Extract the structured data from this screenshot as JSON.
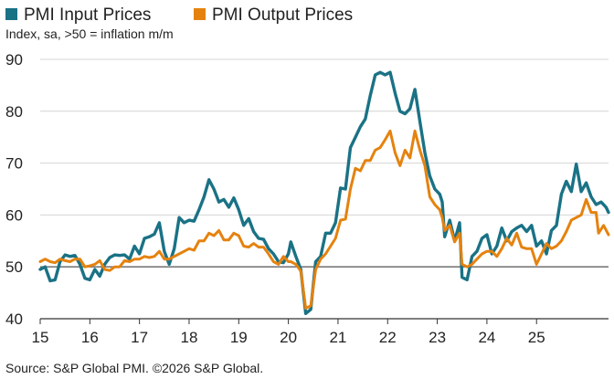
{
  "chart_data": {
    "type": "line",
    "title": "",
    "subtitle": "Index, sa, >50 = inflation m/m",
    "source": "Source: S&P Global PMI. ©2026 S&P Global.",
    "xlabel": "",
    "ylabel": "",
    "ylim": [
      40,
      90
    ],
    "xlim": [
      2015.0,
      2025.95
    ],
    "yticks": [
      "40",
      "50",
      "60",
      "70",
      "80",
      "90"
    ],
    "xticks": [
      "15",
      "16",
      "17",
      "18",
      "19",
      "20",
      "21",
      "22",
      "23",
      "24",
      "25"
    ],
    "grid": "horizontal",
    "legend": "top-left",
    "series": [
      {
        "name": "PMI Input Prices",
        "color": "#1a7285",
        "points": [
          [
            2015.0,
            49.5
          ],
          [
            2015.1,
            50.0
          ],
          [
            2015.2,
            47.3
          ],
          [
            2015.3,
            47.5
          ],
          [
            2015.4,
            51.0
          ],
          [
            2015.5,
            52.3
          ],
          [
            2015.6,
            52.0
          ],
          [
            2015.7,
            52.2
          ],
          [
            2015.8,
            50.5
          ],
          [
            2015.9,
            47.8
          ],
          [
            2016.0,
            47.5
          ],
          [
            2016.1,
            49.5
          ],
          [
            2016.2,
            48.2
          ],
          [
            2016.3,
            50.5
          ],
          [
            2016.4,
            51.8
          ],
          [
            2016.5,
            52.3
          ],
          [
            2016.6,
            52.2
          ],
          [
            2016.7,
            52.3
          ],
          [
            2016.8,
            51.5
          ],
          [
            2016.9,
            54.0
          ],
          [
            2017.0,
            52.5
          ],
          [
            2017.1,
            55.5
          ],
          [
            2017.2,
            55.8
          ],
          [
            2017.3,
            56.3
          ],
          [
            2017.4,
            58.5
          ],
          [
            2017.5,
            53.0
          ],
          [
            2017.6,
            50.5
          ],
          [
            2017.7,
            53.5
          ],
          [
            2017.8,
            59.5
          ],
          [
            2017.9,
            58.5
          ],
          [
            2018.0,
            59.0
          ],
          [
            2018.1,
            58.8
          ],
          [
            2018.2,
            61.0
          ],
          [
            2018.3,
            63.5
          ],
          [
            2018.4,
            66.8
          ],
          [
            2018.5,
            65.0
          ],
          [
            2018.6,
            62.5
          ],
          [
            2018.7,
            63.0
          ],
          [
            2018.8,
            61.5
          ],
          [
            2018.9,
            63.3
          ],
          [
            2019.0,
            61.0
          ],
          [
            2019.1,
            58.0
          ],
          [
            2019.2,
            59.3
          ],
          [
            2019.3,
            56.8
          ],
          [
            2019.4,
            55.5
          ],
          [
            2019.5,
            55.3
          ],
          [
            2019.6,
            53.5
          ],
          [
            2019.7,
            52.5
          ],
          [
            2019.8,
            51.0
          ],
          [
            2019.9,
            50.8
          ],
          [
            2020.0,
            52.5
          ],
          [
            2020.05,
            54.8
          ],
          [
            2020.15,
            52.0
          ],
          [
            2020.25,
            49.5
          ],
          [
            2020.35,
            41.0
          ],
          [
            2020.45,
            41.8
          ],
          [
            2020.55,
            51.0
          ],
          [
            2020.65,
            52.0
          ],
          [
            2020.75,
            56.5
          ],
          [
            2020.85,
            56.5
          ],
          [
            2020.95,
            58.5
          ],
          [
            2021.05,
            65.2
          ],
          [
            2021.15,
            65.0
          ],
          [
            2021.25,
            73.0
          ],
          [
            2021.35,
            75.0
          ],
          [
            2021.45,
            77.0
          ],
          [
            2021.55,
            78.5
          ],
          [
            2021.65,
            83.0
          ],
          [
            2021.75,
            87.0
          ],
          [
            2021.85,
            87.5
          ],
          [
            2021.95,
            87.0
          ],
          [
            2022.05,
            87.5
          ],
          [
            2022.15,
            83.5
          ],
          [
            2022.25,
            80.0
          ],
          [
            2022.35,
            79.5
          ],
          [
            2022.45,
            80.5
          ],
          [
            2022.55,
            84.2
          ],
          [
            2022.65,
            78.0
          ],
          [
            2022.75,
            72.0
          ],
          [
            2022.85,
            67.5
          ],
          [
            2022.95,
            65.0
          ],
          [
            2023.05,
            64.0
          ],
          [
            2023.1,
            62.5
          ],
          [
            2023.15,
            55.8
          ],
          [
            2023.25,
            59.0
          ],
          [
            2023.35,
            55.0
          ],
          [
            2023.45,
            58.5
          ],
          [
            2023.5,
            48.0
          ],
          [
            2023.6,
            47.5
          ],
          [
            2023.7,
            52.0
          ],
          [
            2023.8,
            53.0
          ],
          [
            2023.9,
            55.5
          ],
          [
            2024.0,
            56.2
          ],
          [
            2024.1,
            52.5
          ],
          [
            2024.2,
            54.0
          ],
          [
            2024.3,
            57.5
          ],
          [
            2024.4,
            55.0
          ],
          [
            2024.5,
            56.8
          ],
          [
            2024.6,
            57.5
          ],
          [
            2024.7,
            58.0
          ],
          [
            2024.8,
            56.8
          ],
          [
            2024.9,
            58.0
          ],
          [
            2025.0,
            54.0
          ],
          [
            2025.1,
            55.0
          ],
          [
            2025.2,
            52.5
          ],
          [
            2025.3,
            57.0
          ],
          [
            2025.4,
            58.0
          ],
          [
            2025.5,
            64.0
          ],
          [
            2025.6,
            66.5
          ],
          [
            2025.7,
            64.5
          ],
          [
            2025.8,
            69.8
          ],
          [
            2025.9,
            64.5
          ],
          [
            2026.0,
            66.2
          ],
          [
            2026.1,
            63.5
          ],
          [
            2026.2,
            62.0
          ],
          [
            2026.3,
            62.5
          ],
          [
            2026.4,
            61.5
          ],
          [
            2026.45,
            60.5
          ]
        ]
      },
      {
        "name": "PMI Output Prices",
        "color": "#e5820e",
        "points": [
          [
            2015.0,
            51.0
          ],
          [
            2015.1,
            51.5
          ],
          [
            2015.2,
            51.0
          ],
          [
            2015.3,
            50.8
          ],
          [
            2015.4,
            51.5
          ],
          [
            2015.5,
            51.2
          ],
          [
            2015.6,
            51.0
          ],
          [
            2015.7,
            51.5
          ],
          [
            2015.8,
            51.5
          ],
          [
            2015.9,
            50.0
          ],
          [
            2016.0,
            50.2
          ],
          [
            2016.1,
            50.5
          ],
          [
            2016.2,
            51.2
          ],
          [
            2016.3,
            49.5
          ],
          [
            2016.4,
            49.3
          ],
          [
            2016.5,
            50.0
          ],
          [
            2016.6,
            50.0
          ],
          [
            2016.7,
            51.2
          ],
          [
            2016.8,
            51.0
          ],
          [
            2016.9,
            51.5
          ],
          [
            2017.0,
            51.5
          ],
          [
            2017.1,
            52.0
          ],
          [
            2017.2,
            51.8
          ],
          [
            2017.3,
            52.0
          ],
          [
            2017.4,
            53.0
          ],
          [
            2017.5,
            51.5
          ],
          [
            2017.6,
            51.5
          ],
          [
            2017.7,
            52.0
          ],
          [
            2017.8,
            52.5
          ],
          [
            2017.9,
            53.0
          ],
          [
            2018.0,
            53.5
          ],
          [
            2018.1,
            53.2
          ],
          [
            2018.2,
            55.0
          ],
          [
            2018.3,
            55.0
          ],
          [
            2018.4,
            56.5
          ],
          [
            2018.5,
            56.0
          ],
          [
            2018.6,
            57.0
          ],
          [
            2018.7,
            55.2
          ],
          [
            2018.8,
            55.2
          ],
          [
            2018.9,
            56.5
          ],
          [
            2019.0,
            56.0
          ],
          [
            2019.1,
            54.0
          ],
          [
            2019.2,
            53.8
          ],
          [
            2019.3,
            54.5
          ],
          [
            2019.4,
            53.8
          ],
          [
            2019.5,
            53.8
          ],
          [
            2019.6,
            52.5
          ],
          [
            2019.7,
            51.0
          ],
          [
            2019.8,
            50.5
          ],
          [
            2019.9,
            52.0
          ],
          [
            2020.0,
            51.0
          ],
          [
            2020.05,
            51.0
          ],
          [
            2020.15,
            50.5
          ],
          [
            2020.25,
            49.2
          ],
          [
            2020.35,
            42.0
          ],
          [
            2020.45,
            42.5
          ],
          [
            2020.55,
            49.5
          ],
          [
            2020.65,
            51.5
          ],
          [
            2020.75,
            52.5
          ],
          [
            2020.85,
            54.0
          ],
          [
            2020.95,
            55.5
          ],
          [
            2021.05,
            59.0
          ],
          [
            2021.15,
            59.2
          ],
          [
            2021.25,
            65.0
          ],
          [
            2021.35,
            69.0
          ],
          [
            2021.45,
            68.5
          ],
          [
            2021.55,
            70.5
          ],
          [
            2021.65,
            70.5
          ],
          [
            2021.75,
            72.5
          ],
          [
            2021.85,
            73.0
          ],
          [
            2021.95,
            74.5
          ],
          [
            2022.05,
            76.2
          ],
          [
            2022.15,
            72.0
          ],
          [
            2022.25,
            69.5
          ],
          [
            2022.35,
            72.5
          ],
          [
            2022.45,
            71.0
          ],
          [
            2022.55,
            76.2
          ],
          [
            2022.65,
            72.5
          ],
          [
            2022.75,
            69.5
          ],
          [
            2022.85,
            63.5
          ],
          [
            2022.95,
            62.0
          ],
          [
            2023.05,
            61.0
          ],
          [
            2023.1,
            59.5
          ],
          [
            2023.15,
            57.0
          ],
          [
            2023.25,
            58.0
          ],
          [
            2023.35,
            54.8
          ],
          [
            2023.45,
            56.5
          ],
          [
            2023.5,
            50.5
          ],
          [
            2023.6,
            50.0
          ],
          [
            2023.7,
            50.5
          ],
          [
            2023.8,
            51.5
          ],
          [
            2023.9,
            52.5
          ],
          [
            2024.0,
            53.0
          ],
          [
            2024.1,
            53.0
          ],
          [
            2024.2,
            52.0
          ],
          [
            2024.3,
            53.5
          ],
          [
            2024.4,
            55.5
          ],
          [
            2024.5,
            54.2
          ],
          [
            2024.6,
            56.5
          ],
          [
            2024.7,
            53.8
          ],
          [
            2024.8,
            53.5
          ],
          [
            2024.9,
            53.5
          ],
          [
            2025.0,
            50.5
          ],
          [
            2025.1,
            52.5
          ],
          [
            2025.2,
            54.5
          ],
          [
            2025.3,
            53.5
          ],
          [
            2025.4,
            54.0
          ],
          [
            2025.5,
            55.0
          ],
          [
            2025.6,
            56.8
          ],
          [
            2025.7,
            59.0
          ],
          [
            2025.8,
            59.5
          ],
          [
            2025.9,
            60.0
          ],
          [
            2026.0,
            63.0
          ],
          [
            2026.1,
            60.5
          ],
          [
            2026.2,
            60.5
          ],
          [
            2026.25,
            56.5
          ],
          [
            2026.35,
            58.0
          ],
          [
            2026.45,
            56.2
          ]
        ]
      }
    ]
  }
}
